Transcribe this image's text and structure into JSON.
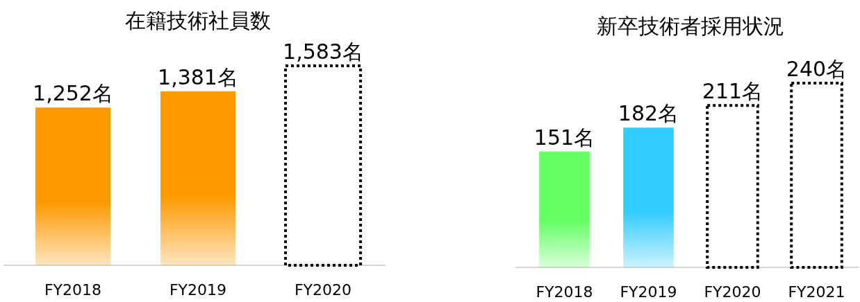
{
  "chart_data": [
    {
      "type": "bar",
      "title": "在籍技術社員数",
      "categories": [
        "FY2018",
        "FY2019",
        "FY2020"
      ],
      "stacked": true,
      "series": [
        {
          "color": "#ff9900",
          "values": [
            1252,
            1381,
            null
          ],
          "value_labels": [
            "1,252名",
            "1,381名",
            null
          ]
        },
        {
          "color": "#000000",
          "line_style": "dotted",
          "values": [
            null,
            null,
            1583
          ],
          "value_labels": [
            null,
            null,
            "1,583名"
          ]
        }
      ]
    },
    {
      "type": "bar",
      "title": "新卒技術者採用状況",
      "categories": [
        "FY2018",
        "FY2019",
        "FY2020",
        "FY2021"
      ],
      "stacked": true,
      "series": [
        {
          "colors": [
            "#66ff66",
            "#33ccff",
            null,
            null
          ],
          "values": [
            151,
            182,
            null,
            null
          ],
          "value_labels": [
            "151名",
            "182名",
            null,
            null
          ]
        },
        {
          "color": "#000000",
          "line_style": "dotted",
          "values": [
            null,
            null,
            211,
            240
          ],
          "value_labels": [
            null,
            null,
            "211名",
            "240名"
          ]
        }
      ]
    }
  ]
}
